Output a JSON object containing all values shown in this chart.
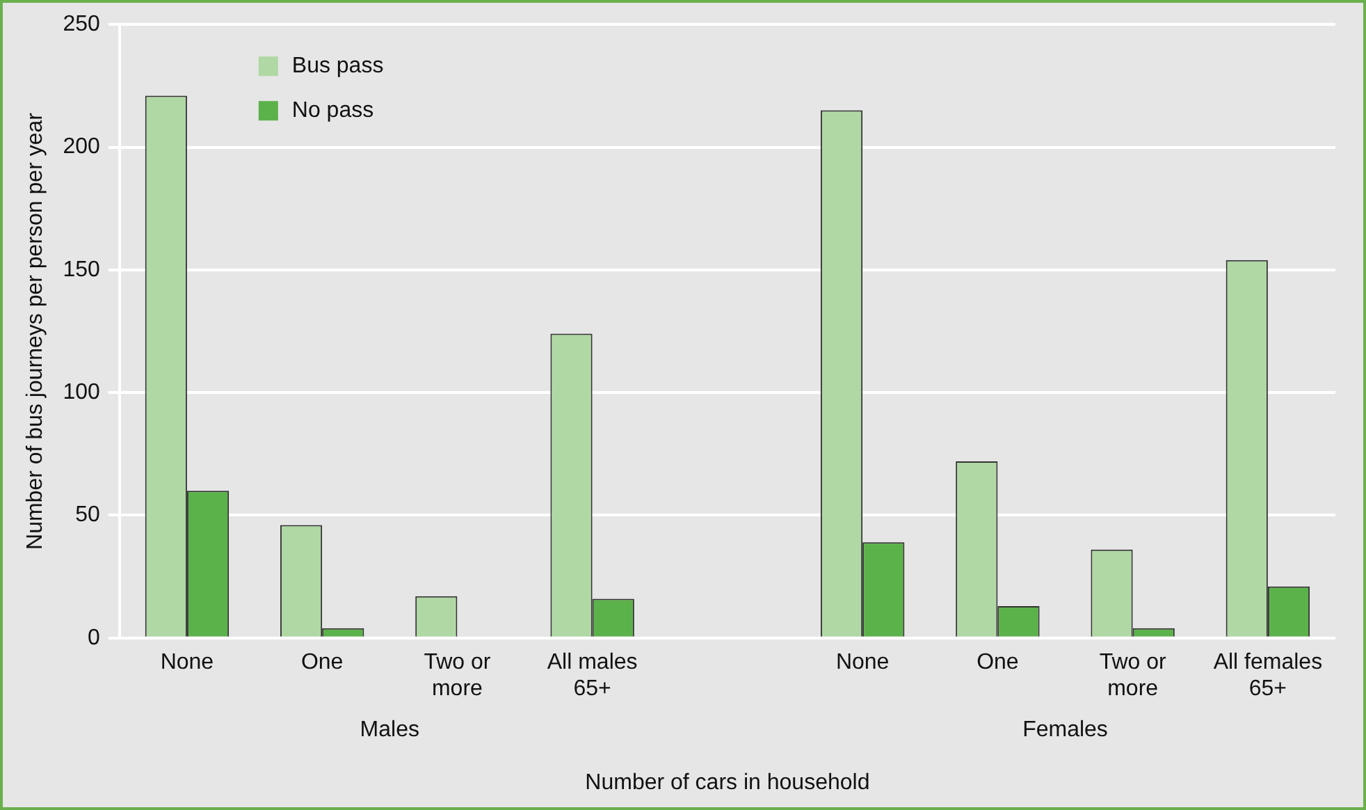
{
  "chart_data": {
    "type": "bar",
    "xlabel": "Number of cars in household",
    "ylabel": "Number of bus journeys per person per year",
    "categories": [
      "None",
      "One",
      "Two or more",
      "All males 65+",
      null,
      "None",
      "One",
      "Two or more",
      "All females 65+"
    ],
    "series": [
      {
        "name": "Bus pass",
        "color": "#b0d8a4",
        "values": [
          221,
          46,
          17,
          124,
          null,
          215,
          72,
          36,
          154
        ]
      },
      {
        "name": "No pass",
        "color": "#5cb24a",
        "values": [
          60,
          4,
          null,
          16,
          null,
          39,
          13,
          4,
          21
        ]
      }
    ],
    "annotations": [
      "Males",
      "Females"
    ],
    "ylim": [
      0,
      250
    ],
    "yticks": [
      0,
      50,
      100,
      150,
      200,
      250
    ],
    "grid": "y",
    "legend": "top left"
  }
}
